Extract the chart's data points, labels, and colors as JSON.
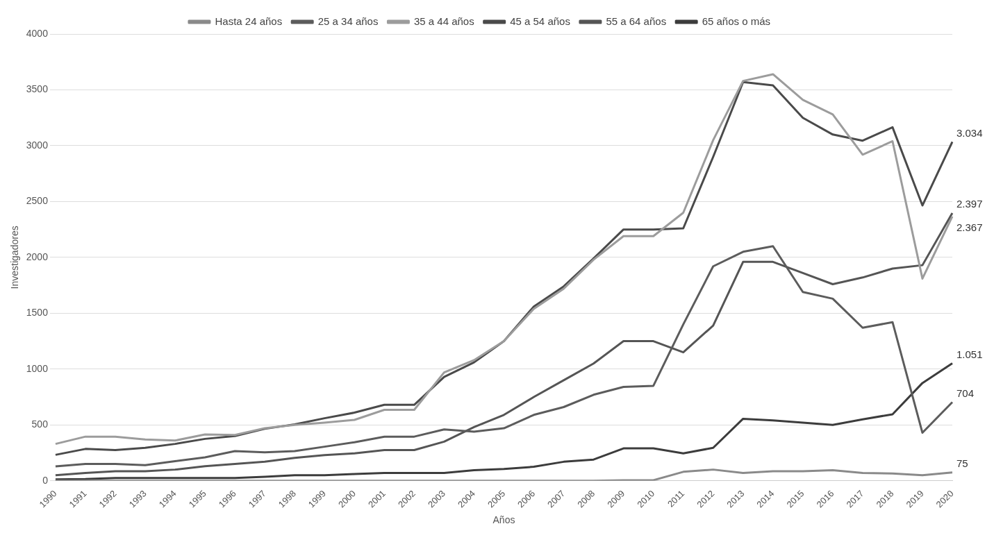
{
  "chart_data": {
    "type": "line",
    "xlabel": "Años",
    "ylabel": "Investigadores",
    "categories": [
      "1990",
      "1991",
      "1992",
      "1993",
      "1994",
      "1995",
      "1996",
      "1997",
      "1998",
      "1999",
      "2000",
      "2001",
      "2002",
      "2003",
      "2004",
      "2005",
      "2006",
      "2007",
      "2008",
      "2009",
      "2010",
      "2011",
      "2012",
      "2013",
      "2014",
      "2015",
      "2016",
      "2017",
      "2018",
      "2019",
      "2020"
    ],
    "series": [
      {
        "name": "Hasta 24 años",
        "color": "#8a8a8a",
        "values": [
          0,
          0,
          0,
          0,
          0,
          0,
          0,
          0,
          0,
          0,
          0,
          0,
          0,
          0,
          0,
          0,
          0,
          0,
          0,
          5,
          5,
          80,
          100,
          70,
          85,
          85,
          95,
          70,
          65,
          50,
          75
        ],
        "value_labels": [
          null,
          null,
          null,
          null,
          null,
          null,
          null,
          null,
          null,
          null,
          null,
          null,
          null,
          null,
          null,
          null,
          null,
          null,
          null,
          null,
          null,
          null,
          null,
          null,
          null,
          null,
          null,
          null,
          null,
          null,
          "75"
        ]
      },
      {
        "name": "25 a 34 años",
        "color": "#5c5c5c",
        "values": [
          129,
          150,
          150,
          140,
          175,
          210,
          265,
          255,
          265,
          305,
          345,
          395,
          395,
          460,
          440,
          470,
          590,
          660,
          770,
          840,
          850,
          1400,
          1920,
          2050,
          2100,
          1690,
          1630,
          1370,
          1420,
          430,
          704
        ],
        "value_labels": [
          null,
          null,
          null,
          null,
          null,
          null,
          null,
          null,
          null,
          null,
          null,
          null,
          null,
          null,
          null,
          null,
          null,
          null,
          null,
          null,
          null,
          null,
          null,
          null,
          null,
          null,
          null,
          null,
          null,
          null,
          "704"
        ]
      },
      {
        "name": "35 a 44 años",
        "color": "#9c9c9c",
        "values": [
          330,
          395,
          395,
          370,
          360,
          415,
          410,
          470,
          500,
          520,
          545,
          635,
          635,
          970,
          1080,
          1250,
          1540,
          1720,
          1980,
          2190,
          2190,
          2400,
          3050,
          3580,
          3640,
          3410,
          3280,
          2920,
          3040,
          1810,
          2367
        ],
        "value_labels": [
          null,
          null,
          null,
          null,
          null,
          null,
          null,
          null,
          null,
          null,
          null,
          null,
          null,
          null,
          null,
          null,
          null,
          null,
          null,
          null,
          null,
          null,
          null,
          null,
          null,
          null,
          null,
          null,
          null,
          null,
          "2.367"
        ]
      },
      {
        "name": "45 a 54 años",
        "color": "#4a4a4a",
        "values": [
          232,
          285,
          275,
          295,
          330,
          375,
          400,
          465,
          505,
          560,
          610,
          680,
          680,
          930,
          1060,
          1250,
          1560,
          1740,
          1990,
          2250,
          2250,
          2260,
          2900,
          3570,
          3540,
          3250,
          3100,
          3045,
          3165,
          2465,
          3034
        ],
        "value_labels": [
          null,
          null,
          null,
          null,
          null,
          null,
          null,
          null,
          null,
          null,
          null,
          null,
          null,
          null,
          null,
          null,
          null,
          null,
          null,
          null,
          null,
          null,
          null,
          null,
          null,
          null,
          null,
          null,
          null,
          null,
          "3.034"
        ]
      },
      {
        "name": "55 a 64 años",
        "color": "#555555",
        "values": [
          50,
          70,
          85,
          85,
          100,
          130,
          150,
          170,
          205,
          230,
          245,
          275,
          275,
          350,
          480,
          590,
          750,
          900,
          1050,
          1250,
          1250,
          1150,
          1390,
          1960,
          1960,
          1860,
          1760,
          1820,
          1900,
          1930,
          2397
        ],
        "value_labels": [
          null,
          null,
          null,
          null,
          null,
          null,
          null,
          null,
          null,
          null,
          null,
          null,
          null,
          null,
          null,
          null,
          null,
          null,
          null,
          null,
          null,
          null,
          null,
          null,
          null,
          null,
          null,
          null,
          null,
          null,
          "2.397"
        ]
      },
      {
        "name": "65 años o más",
        "color": "#3c3c3c",
        "values": [
          12,
          15,
          25,
          25,
          25,
          25,
          25,
          35,
          50,
          50,
          60,
          70,
          70,
          70,
          95,
          105,
          125,
          170,
          190,
          290,
          290,
          245,
          295,
          555,
          540,
          520,
          500,
          550,
          595,
          875,
          1051
        ],
        "value_labels": [
          null,
          null,
          null,
          null,
          null,
          null,
          null,
          null,
          null,
          null,
          null,
          null,
          null,
          null,
          null,
          null,
          null,
          null,
          null,
          null,
          null,
          null,
          null,
          null,
          null,
          null,
          null,
          null,
          null,
          null,
          "1.051"
        ]
      }
    ],
    "ylim": [
      0,
      4000
    ],
    "yticks": [
      0,
      500,
      1000,
      1500,
      2000,
      2500,
      3000,
      3500,
      4000
    ],
    "grid": "y",
    "legend": "top",
    "marker": "none",
    "line_style": "solid"
  }
}
